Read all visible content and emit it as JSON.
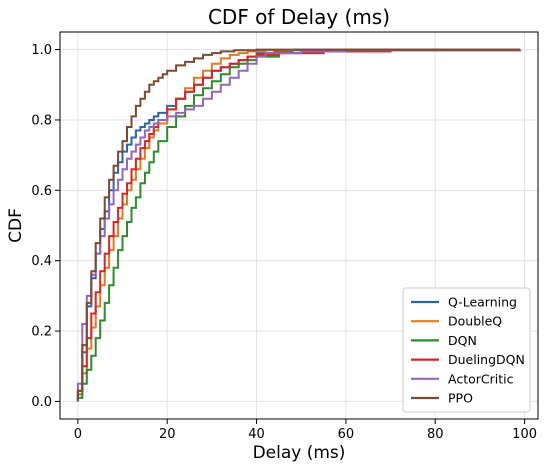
{
  "chart_data": {
    "type": "line",
    "title": "CDF of Delay (ms)",
    "xlabel": "Delay (ms)",
    "ylabel": "CDF",
    "xlim": [
      -4,
      103
    ],
    "ylim": [
      -0.05,
      1.05
    ],
    "xticks": [
      0,
      20,
      40,
      60,
      80,
      100
    ],
    "yticks": [
      0.0,
      0.2,
      0.4,
      0.6,
      0.8,
      1.0
    ],
    "grid": true,
    "legend_position": "bottom-right",
    "step": true,
    "series": [
      {
        "name": "Q-Learning",
        "color": "#2b65a8",
        "points": [
          [
            0,
            0.02
          ],
          [
            1,
            0.14
          ],
          [
            2,
            0.27
          ],
          [
            3,
            0.35
          ],
          [
            4,
            0.42
          ],
          [
            5,
            0.49
          ],
          [
            6,
            0.54
          ],
          [
            7,
            0.6
          ],
          [
            8,
            0.65
          ],
          [
            9,
            0.68
          ],
          [
            10,
            0.71
          ],
          [
            11,
            0.73
          ],
          [
            12,
            0.75
          ],
          [
            13,
            0.77
          ],
          [
            14,
            0.78
          ],
          [
            15,
            0.79
          ],
          [
            16,
            0.8
          ],
          [
            17,
            0.81
          ],
          [
            18,
            0.82
          ],
          [
            20,
            0.84
          ],
          [
            22,
            0.86
          ],
          [
            24,
            0.88
          ],
          [
            26,
            0.9
          ],
          [
            28,
            0.92
          ],
          [
            30,
            0.94
          ],
          [
            32,
            0.95
          ],
          [
            34,
            0.96
          ],
          [
            36,
            0.97
          ],
          [
            38,
            0.98
          ],
          [
            40,
            0.99
          ],
          [
            44,
            0.995
          ],
          [
            48,
            0.998
          ],
          [
            56,
            1.0
          ]
        ]
      },
      {
        "name": "DoubleQ",
        "color": "#e07b22",
        "points": [
          [
            0,
            0.02
          ],
          [
            1,
            0.08
          ],
          [
            2,
            0.15
          ],
          [
            3,
            0.21
          ],
          [
            4,
            0.27
          ],
          [
            5,
            0.33
          ],
          [
            6,
            0.38
          ],
          [
            7,
            0.43
          ],
          [
            8,
            0.47
          ],
          [
            9,
            0.52
          ],
          [
            10,
            0.56
          ],
          [
            11,
            0.6
          ],
          [
            12,
            0.63
          ],
          [
            13,
            0.66
          ],
          [
            14,
            0.69
          ],
          [
            15,
            0.72
          ],
          [
            16,
            0.75
          ],
          [
            17,
            0.77
          ],
          [
            18,
            0.79
          ],
          [
            20,
            0.83
          ],
          [
            22,
            0.86
          ],
          [
            24,
            0.89
          ],
          [
            26,
            0.92
          ],
          [
            28,
            0.94
          ],
          [
            30,
            0.96
          ],
          [
            32,
            0.975
          ],
          [
            34,
            0.985
          ],
          [
            36,
            0.99
          ],
          [
            38,
            0.995
          ],
          [
            42,
            0.998
          ],
          [
            48,
            1.0
          ]
        ]
      },
      {
        "name": "DQN",
        "color": "#2e8b2e",
        "points": [
          [
            0,
            0.01
          ],
          [
            1,
            0.05
          ],
          [
            2,
            0.09
          ],
          [
            3,
            0.13
          ],
          [
            4,
            0.18
          ],
          [
            5,
            0.23
          ],
          [
            6,
            0.28
          ],
          [
            7,
            0.33
          ],
          [
            8,
            0.38
          ],
          [
            9,
            0.43
          ],
          [
            10,
            0.47
          ],
          [
            11,
            0.51
          ],
          [
            12,
            0.55
          ],
          [
            13,
            0.58
          ],
          [
            14,
            0.62
          ],
          [
            15,
            0.65
          ],
          [
            16,
            0.68
          ],
          [
            17,
            0.71
          ],
          [
            18,
            0.74
          ],
          [
            20,
            0.78
          ],
          [
            22,
            0.81
          ],
          [
            24,
            0.84
          ],
          [
            26,
            0.87
          ],
          [
            28,
            0.89
          ],
          [
            30,
            0.91
          ],
          [
            32,
            0.93
          ],
          [
            34,
            0.95
          ],
          [
            36,
            0.96
          ],
          [
            38,
            0.97
          ],
          [
            40,
            0.98
          ],
          [
            45,
            0.99
          ],
          [
            55,
            0.995
          ],
          [
            70,
            0.998
          ],
          [
            99,
            1.0
          ]
        ]
      },
      {
        "name": "DuelingDQN",
        "color": "#d62728",
        "points": [
          [
            0,
            0.03
          ],
          [
            1,
            0.1
          ],
          [
            2,
            0.18
          ],
          [
            3,
            0.25
          ],
          [
            4,
            0.31
          ],
          [
            5,
            0.37
          ],
          [
            6,
            0.42
          ],
          [
            7,
            0.47
          ],
          [
            8,
            0.51
          ],
          [
            9,
            0.55
          ],
          [
            10,
            0.59
          ],
          [
            11,
            0.62
          ],
          [
            12,
            0.66
          ],
          [
            13,
            0.69
          ],
          [
            14,
            0.72
          ],
          [
            15,
            0.74
          ],
          [
            16,
            0.76
          ],
          [
            17,
            0.78
          ],
          [
            18,
            0.8
          ],
          [
            20,
            0.83
          ],
          [
            22,
            0.86
          ],
          [
            24,
            0.88
          ],
          [
            26,
            0.9
          ],
          [
            28,
            0.92
          ],
          [
            30,
            0.94
          ],
          [
            32,
            0.95
          ],
          [
            34,
            0.96
          ],
          [
            36,
            0.97
          ],
          [
            38,
            0.98
          ],
          [
            40,
            0.985
          ],
          [
            45,
            0.99
          ],
          [
            55,
            0.995
          ],
          [
            70,
            0.998
          ],
          [
            99,
            1.0
          ]
        ]
      },
      {
        "name": "ActorCritic",
        "color": "#9467bd",
        "points": [
          [
            0,
            0.05
          ],
          [
            1,
            0.22
          ],
          [
            2,
            0.3
          ],
          [
            3,
            0.36
          ],
          [
            4,
            0.42
          ],
          [
            5,
            0.47
          ],
          [
            6,
            0.52
          ],
          [
            7,
            0.56
          ],
          [
            8,
            0.6
          ],
          [
            9,
            0.63
          ],
          [
            10,
            0.66
          ],
          [
            11,
            0.69
          ],
          [
            12,
            0.71
          ],
          [
            13,
            0.73
          ],
          [
            14,
            0.75
          ],
          [
            15,
            0.77
          ],
          [
            16,
            0.78
          ],
          [
            17,
            0.79
          ],
          [
            18,
            0.8
          ],
          [
            20,
            0.81
          ],
          [
            22,
            0.82
          ],
          [
            24,
            0.83
          ],
          [
            26,
            0.84
          ],
          [
            28,
            0.86
          ],
          [
            30,
            0.88
          ],
          [
            32,
            0.9
          ],
          [
            34,
            0.92
          ],
          [
            36,
            0.94
          ],
          [
            38,
            0.96
          ],
          [
            40,
            0.98
          ],
          [
            42,
            0.99
          ],
          [
            50,
            0.995
          ],
          [
            60,
            0.998
          ],
          [
            99,
            1.0
          ]
        ]
      },
      {
        "name": "PPO",
        "color": "#7b4a33",
        "points": [
          [
            0,
            0.03
          ],
          [
            1,
            0.16
          ],
          [
            2,
            0.28
          ],
          [
            3,
            0.37
          ],
          [
            4,
            0.45
          ],
          [
            5,
            0.52
          ],
          [
            6,
            0.58
          ],
          [
            7,
            0.63
          ],
          [
            8,
            0.67
          ],
          [
            9,
            0.71
          ],
          [
            10,
            0.74
          ],
          [
            11,
            0.78
          ],
          [
            12,
            0.81
          ],
          [
            13,
            0.84
          ],
          [
            14,
            0.86
          ],
          [
            15,
            0.88
          ],
          [
            16,
            0.9
          ],
          [
            17,
            0.91
          ],
          [
            18,
            0.92
          ],
          [
            19,
            0.93
          ],
          [
            20,
            0.94
          ],
          [
            22,
            0.955
          ],
          [
            24,
            0.965
          ],
          [
            26,
            0.975
          ],
          [
            28,
            0.985
          ],
          [
            30,
            0.99
          ],
          [
            32,
            0.995
          ],
          [
            35,
            0.998
          ],
          [
            40,
            1.0
          ]
        ]
      }
    ]
  }
}
